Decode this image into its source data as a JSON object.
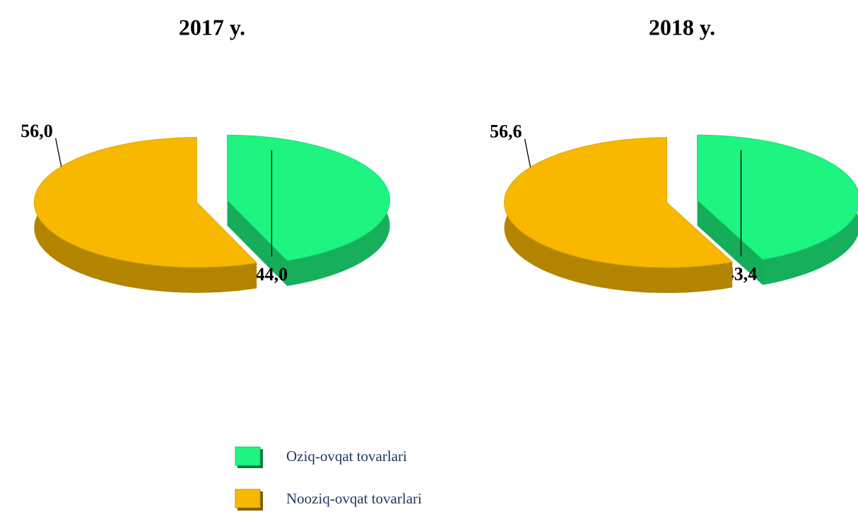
{
  "chart_data": {
    "type": "pie",
    "categories": [
      "Oziq-ovqat tovarlari",
      "Nooziq-ovqat tovarlari"
    ],
    "colors": [
      "#1ef580",
      "#f8b800"
    ],
    "series": [
      {
        "name": "2017 y.",
        "values": [
          44.0,
          56.0
        ],
        "value_labels": [
          "44,0",
          "56,0"
        ]
      },
      {
        "name": "2018 y.",
        "values": [
          43.4,
          56.6
        ],
        "value_labels": [
          "43,4",
          "56,6"
        ]
      }
    ]
  }
}
